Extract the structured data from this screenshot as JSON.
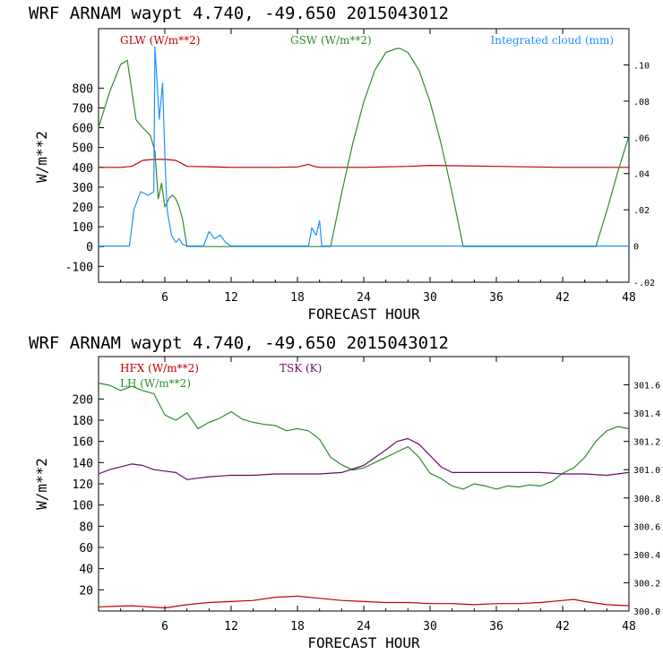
{
  "chart_data": [
    {
      "type": "line",
      "title": "WRF   ARNAM waypt     4.740, -49.650  2015043012",
      "xlabel": "FORECAST HOUR",
      "ylabel": "W/m**2",
      "xlim": [
        0,
        48
      ],
      "ylim": [
        -180,
        1100
      ],
      "y2lim": [
        -0.02,
        0.12
      ],
      "xticks": [
        "6",
        "12",
        "18",
        "24",
        "30",
        "36",
        "42",
        "48"
      ],
      "yticks": [
        "800",
        "700",
        "600",
        "500",
        "400",
        "300",
        "200",
        "100",
        "0",
        "-100"
      ],
      "y2ticks": [
        ".10",
        ".08",
        ".06",
        ".04",
        ".02",
        "0",
        "-.02"
      ],
      "legend_position": "top",
      "series": [
        {
          "name": "GLW (W/m**2)",
          "axis": "left",
          "color": "#c00000",
          "x": [
            0,
            2,
            3,
            4,
            5,
            6,
            7,
            7.5,
            8,
            10,
            12,
            16,
            18,
            19,
            19.5,
            20,
            24,
            28,
            30,
            36,
            42,
            48
          ],
          "y": [
            400,
            400,
            405,
            435,
            440,
            440,
            435,
            420,
            405,
            403,
            400,
            400,
            402,
            415,
            405,
            400,
            400,
            405,
            410,
            405,
            400,
            400
          ]
        },
        {
          "name": "GSW (W/m**2)",
          "axis": "left",
          "color": "#2e8b2e",
          "x": [
            0,
            1,
            2,
            2.6,
            3,
            3.4,
            4,
            4.7,
            5.1,
            5.4,
            5.7,
            6,
            6.4,
            6.7,
            7,
            7.3,
            7.6,
            8,
            8.5,
            21,
            22,
            23,
            24,
            25,
            26,
            27,
            27.3,
            28,
            29,
            30,
            31,
            32,
            33,
            45,
            46,
            47,
            48
          ],
          "y": [
            600,
            780,
            920,
            940,
            790,
            640,
            600,
            560,
            480,
            240,
            320,
            200,
            245,
            260,
            240,
            200,
            140,
            0,
            0,
            0,
            270,
            520,
            730,
            890,
            980,
            1000,
            1000,
            980,
            890,
            730,
            520,
            270,
            0,
            0,
            180,
            380,
            560
          ]
        },
        {
          "name": "Integrated cloud (mm)",
          "axis": "right",
          "color": "#1e90ff",
          "x": [
            0,
            2.8,
            3.2,
            3.8,
            4.5,
            5,
            5.1,
            5.5,
            5.8,
            6,
            6.2,
            6.6,
            7,
            7.3,
            7.6,
            8,
            9.5,
            10,
            10.5,
            11,
            11.5,
            12,
            13,
            19,
            19.3,
            19.7,
            20,
            20.2,
            48
          ],
          "y": [
            0,
            0,
            0.02,
            0.03,
            0.028,
            0.03,
            0.11,
            0.07,
            0.09,
            0.05,
            0.02,
            0.006,
            0.002,
            0.004,
            0.001,
            0,
            0,
            0.008,
            0.004,
            0.006,
            0.002,
            0,
            0,
            0,
            0.01,
            0.006,
            0.014,
            0,
            0
          ]
        }
      ]
    },
    {
      "type": "line",
      "title": "WRF   ARNAM waypt     4.740, -49.650  2015043012",
      "xlabel": "FORECAST HOUR",
      "ylabel": "W/m**2",
      "xlim": [
        0,
        48
      ],
      "ylim": [
        0,
        240
      ],
      "y2lim": [
        300.0,
        301.8
      ],
      "xticks": [
        "6",
        "12",
        "18",
        "24",
        "30",
        "36",
        "42",
        "48"
      ],
      "yticks": [
        "200",
        "180",
        "160",
        "140",
        "120",
        "100",
        "80",
        "60",
        "40",
        "20"
      ],
      "y2ticks": [
        "301.6",
        "301.4",
        "301.2",
        "301.0",
        "300.8",
        "300.6",
        "300.4",
        "300.2",
        "300.0"
      ],
      "legend_position": "top",
      "series": [
        {
          "name": "HFX (W/m**2)",
          "axis": "left",
          "color": "#c00000",
          "x": [
            0,
            3,
            6,
            8,
            10,
            12,
            14,
            16,
            18,
            20,
            22,
            24,
            26,
            28,
            30,
            32,
            34,
            36,
            38,
            40,
            42,
            43,
            44,
            46,
            48
          ],
          "y": [
            4,
            5,
            3,
            6,
            8,
            9,
            10,
            13,
            14,
            12,
            10,
            9,
            8,
            8,
            7,
            7,
            6,
            7,
            7,
            8,
            10,
            11,
            9,
            6,
            5
          ]
        },
        {
          "name": "LH  (W/m**2)",
          "axis": "left",
          "color": "#2e8b2e",
          "x": [
            0,
            1,
            2,
            3,
            4,
            5,
            6,
            7,
            8,
            9,
            10,
            11,
            12,
            13,
            14,
            15,
            16,
            17,
            18,
            19,
            20,
            21,
            22,
            23,
            24,
            25,
            26,
            27,
            28,
            29,
            30,
            31,
            32,
            33,
            34,
            35,
            36,
            37,
            38,
            39,
            40,
            41,
            42,
            43,
            44,
            45,
            46,
            47,
            48
          ],
          "y": [
            215,
            213,
            208,
            212,
            208,
            205,
            185,
            180,
            187,
            172,
            178,
            182,
            188,
            181,
            178,
            176,
            175,
            170,
            172,
            170,
            162,
            145,
            138,
            133,
            135,
            140,
            145,
            150,
            155,
            145,
            130,
            125,
            118,
            115,
            120,
            118,
            115,
            118,
            117,
            119,
            118,
            122,
            130,
            135,
            145,
            160,
            170,
            174,
            172
          ]
        },
        {
          "name": "TSK (K)",
          "axis": "right",
          "color": "#6a0a6a",
          "x": [
            0,
            1,
            2,
            3,
            4,
            5,
            6,
            7,
            8,
            9,
            10,
            12,
            14,
            16,
            18,
            20,
            22,
            24,
            26,
            27,
            28,
            29,
            30,
            31,
            32,
            34,
            36,
            38,
            40,
            42,
            44,
            46,
            48
          ],
          "y": [
            300.97,
            301.0,
            301.02,
            301.04,
            301.03,
            301.0,
            300.99,
            300.98,
            300.93,
            300.94,
            300.95,
            300.96,
            300.96,
            300.97,
            300.97,
            300.97,
            300.98,
            301.03,
            301.14,
            301.2,
            301.22,
            301.18,
            301.1,
            301.02,
            300.98,
            300.98,
            300.98,
            300.98,
            300.98,
            300.97,
            300.97,
            300.96,
            300.98
          ]
        }
      ]
    }
  ]
}
